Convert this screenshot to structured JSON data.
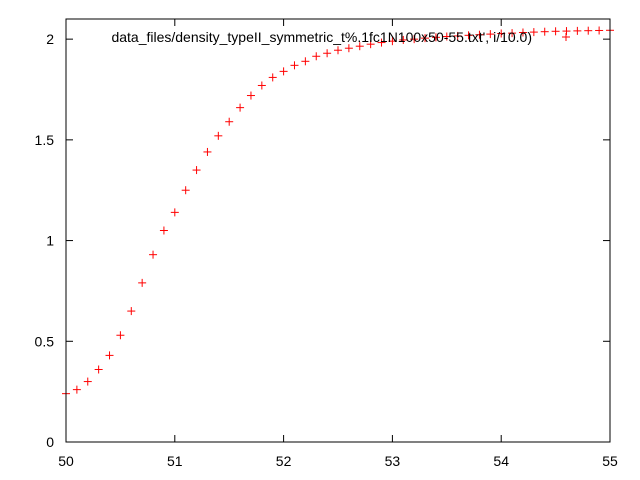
{
  "chart_data": {
    "type": "scatter",
    "title": "",
    "xlabel": "",
    "ylabel": "",
    "xlim": [
      50,
      55
    ],
    "ylim": [
      0,
      2.1
    ],
    "x_ticks": [
      50,
      51,
      52,
      53,
      54,
      55
    ],
    "x_tick_labels": [
      "50",
      "51",
      "52",
      "53",
      "54",
      "55"
    ],
    "y_ticks": [
      0,
      0.5,
      1,
      1.5,
      2
    ],
    "y_tick_labels": [
      "0",
      "0.5",
      "1",
      "1.5",
      "2"
    ],
    "grid": false,
    "legend_position": "top-right",
    "series": [
      {
        "name": "data_files/density_typeII_symmetric_t%.1fc1N100x50-55.txt', i/10.0)",
        "marker": "+",
        "color": "#ff0000",
        "points": [
          [
            50.0,
            0.24
          ],
          [
            50.1,
            0.26
          ],
          [
            50.2,
            0.3
          ],
          [
            50.3,
            0.36
          ],
          [
            50.4,
            0.43
          ],
          [
            50.5,
            0.53
          ],
          [
            50.6,
            0.65
          ],
          [
            50.7,
            0.79
          ],
          [
            50.8,
            0.93
          ],
          [
            50.9,
            1.05
          ],
          [
            51.0,
            1.14
          ],
          [
            51.1,
            1.25
          ],
          [
            51.2,
            1.35
          ],
          [
            51.3,
            1.44
          ],
          [
            51.4,
            1.52
          ],
          [
            51.5,
            1.59
          ],
          [
            51.6,
            1.66
          ],
          [
            51.7,
            1.72
          ],
          [
            51.8,
            1.77
          ],
          [
            51.9,
            1.81
          ],
          [
            52.0,
            1.84
          ],
          [
            52.1,
            1.87
          ],
          [
            52.2,
            1.89
          ],
          [
            52.3,
            1.915
          ],
          [
            52.4,
            1.93
          ],
          [
            52.5,
            1.945
          ],
          [
            52.6,
            1.955
          ],
          [
            52.7,
            1.965
          ],
          [
            52.8,
            1.975
          ],
          [
            52.9,
            1.983
          ],
          [
            53.0,
            1.99
          ],
          [
            53.1,
            1.996
          ],
          [
            53.2,
            2.0
          ],
          [
            53.3,
            2.005
          ],
          [
            53.4,
            2.009
          ],
          [
            53.5,
            2.013
          ],
          [
            53.6,
            2.016
          ],
          [
            53.7,
            2.019
          ],
          [
            53.8,
            2.022
          ],
          [
            53.9,
            2.025
          ],
          [
            54.0,
            2.028
          ],
          [
            54.1,
            2.03
          ],
          [
            54.2,
            2.033
          ],
          [
            54.3,
            2.035
          ],
          [
            54.4,
            2.037
          ],
          [
            54.5,
            2.039
          ],
          [
            54.6,
            2.04
          ],
          [
            54.7,
            2.041
          ],
          [
            54.8,
            2.042
          ],
          [
            54.9,
            2.043
          ],
          [
            55.0,
            2.044
          ]
        ]
      }
    ]
  }
}
